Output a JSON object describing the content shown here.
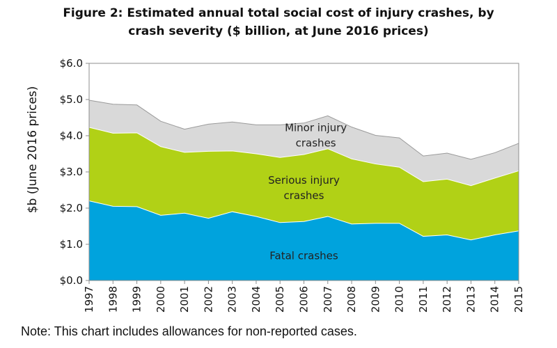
{
  "chart_data": {
    "type": "area",
    "stacked": true,
    "title_lines": [
      "Figure 2: Estimated annual total social cost of injury crashes, by",
      "crash severity ($ billion, at June 2016 prices)"
    ],
    "ylabel": "$b (June 2016 prices)",
    "ylim": [
      0,
      6
    ],
    "ytick_values": [
      0,
      1,
      2,
      3,
      4,
      5,
      6
    ],
    "ytick_labels": [
      "$0.0",
      "$1.0",
      "$2.0",
      "$3.0",
      "$4.0",
      "$5.0",
      "$6.0"
    ],
    "x": [
      "1997",
      "1998",
      "1999",
      "2000",
      "2001",
      "2002",
      "2003",
      "2004",
      "2005",
      "2006",
      "2007",
      "2008",
      "2009",
      "2010",
      "2011",
      "2012",
      "2013",
      "2014",
      "2015"
    ],
    "series": [
      {
        "name": "Fatal crashes",
        "color": "#00A3DD",
        "values": [
          2.2,
          2.05,
          2.04,
          1.8,
          1.86,
          1.72,
          1.9,
          1.77,
          1.6,
          1.63,
          1.77,
          1.56,
          1.58,
          1.58,
          1.22,
          1.26,
          1.12,
          1.26,
          1.37
        ]
      },
      {
        "name": "Serious injury crashes",
        "color": "#B1D116",
        "values": [
          2.03,
          2.02,
          2.04,
          1.9,
          1.68,
          1.85,
          1.68,
          1.73,
          1.8,
          1.85,
          1.87,
          1.8,
          1.64,
          1.55,
          1.51,
          1.54,
          1.5,
          1.57,
          1.66
        ]
      },
      {
        "name": "Minor injury crashes",
        "color": "#D9D9D9",
        "values": [
          0.75,
          0.8,
          0.77,
          0.7,
          0.64,
          0.75,
          0.8,
          0.8,
          0.9,
          0.87,
          0.91,
          0.88,
          0.79,
          0.81,
          0.71,
          0.72,
          0.73,
          0.7,
          0.76
        ]
      }
    ],
    "annotations": [
      {
        "lines": [
          "Minor injury",
          "crashes"
        ],
        "series": "Minor injury crashes"
      },
      {
        "lines": [
          "Serious injury",
          "crashes"
        ],
        "series": "Serious injury crashes"
      },
      {
        "lines": [
          "Fatal crashes"
        ],
        "series": "Fatal crashes"
      }
    ],
    "legend": "none (inline labels)",
    "grid": false
  },
  "note": "Note: This chart includes allowances for non-reported cases."
}
